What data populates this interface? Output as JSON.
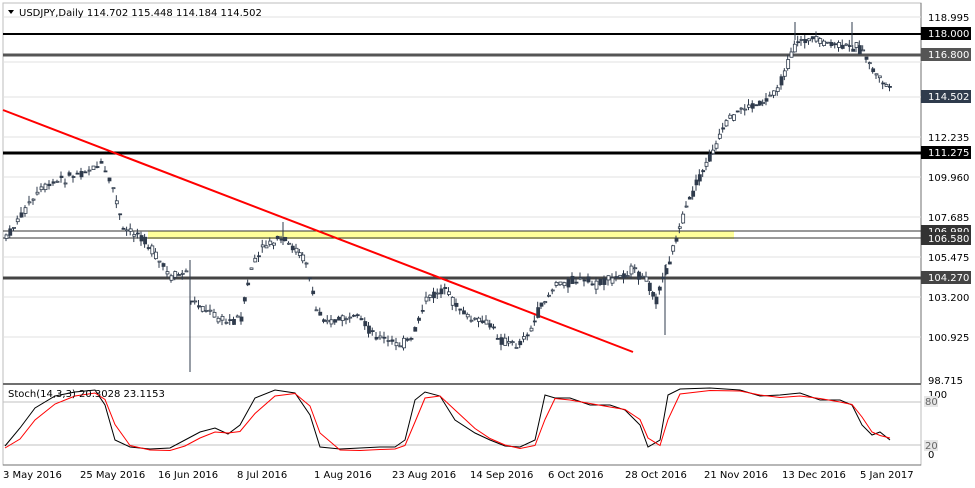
{
  "header": {
    "symbol_text": "USDJPY,Daily  114.702 115.448 114.184 114.502"
  },
  "price_axis": {
    "ticks": [
      "118.995",
      "116.800",
      "114.502",
      "112.235",
      "109.960",
      "107.685",
      "105.475",
      "103.200",
      "100.925",
      "98.715"
    ],
    "hidden_ticks": [
      "116.800",
      "114.502"
    ]
  },
  "level_labels": {
    "l118": "118.000",
    "l1168": "116.800",
    "l114502": "114.502",
    "l111275": "111.275",
    "l106980": "106.980",
    "l106580": "106.580",
    "l104270": "104.270"
  },
  "stoch": {
    "title": "Stoch(14,3,3) 20.3028 23.1153",
    "axis_labels": [
      "100",
      "80",
      "20",
      "0"
    ],
    "level_80": "80",
    "level_20": "20"
  },
  "time_axis": {
    "labels": [
      "3 May 2016",
      "25 May 2016",
      "16 Jun 2016",
      "8 Jul 2016",
      "1 Aug 2016",
      "23 Aug 2016",
      "14 Sep 2016",
      "6 Oct 2016",
      "28 Oct 2016",
      "21 Nov 2016",
      "13 Dec 2016",
      "5 Jan 2017"
    ]
  },
  "colors": {
    "background": "#ffffff",
    "candles": "#2f3b4c",
    "trendline": "#ff0000",
    "zone": "#ffff99",
    "levels": "#000000",
    "stoch_main": "#000000",
    "stoch_signal": "#ff0000",
    "grid": "#c8c8c8"
  }
}
